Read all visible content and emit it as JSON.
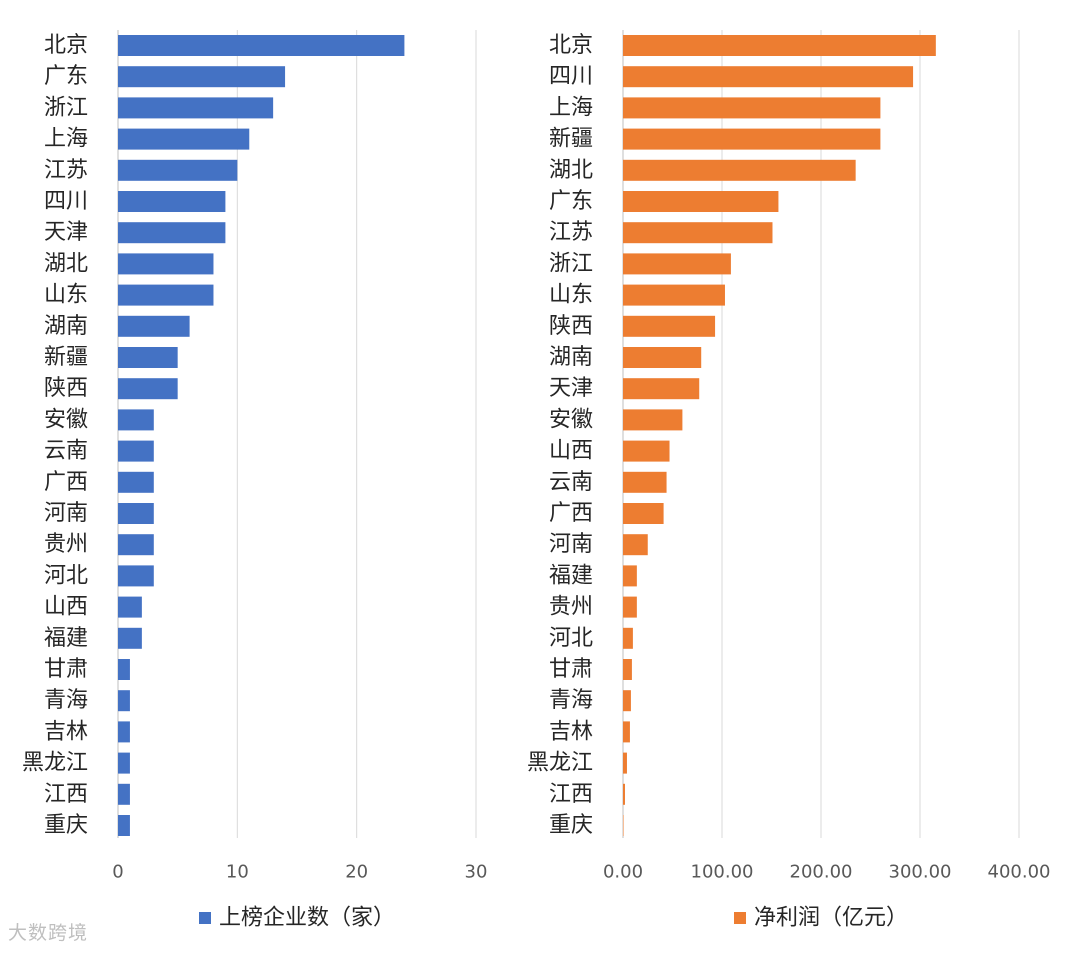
{
  "chart_data": [
    {
      "type": "bar",
      "orientation": "horizontal",
      "categories": [
        "北京",
        "广东",
        "浙江",
        "上海",
        "江苏",
        "四川",
        "天津",
        "湖北",
        "山东",
        "湖南",
        "新疆",
        "陕西",
        "安徽",
        "云南",
        "广西",
        "河南",
        "贵州",
        "河北",
        "山西",
        "福建",
        "甘肃",
        "青海",
        "吉林",
        "黑龙江",
        "江西",
        "重庆"
      ],
      "series": [
        {
          "name": "上榜企业数（家）",
          "color": "#4472C4",
          "values": [
            24,
            14,
            13,
            11,
            10,
            9,
            9,
            8,
            8,
            6,
            5,
            5,
            3,
            3,
            3,
            3,
            3,
            3,
            2,
            2,
            1,
            1,
            1,
            1,
            1,
            1
          ]
        }
      ],
      "xlim": [
        0,
        30
      ],
      "ticks": [
        0,
        10,
        20,
        30
      ],
      "tick_labels": [
        "0",
        "10",
        "20",
        "30"
      ],
      "grid": true,
      "legend": "bottom"
    },
    {
      "type": "bar",
      "orientation": "horizontal",
      "categories": [
        "北京",
        "四川",
        "上海",
        "新疆",
        "湖北",
        "广东",
        "江苏",
        "浙江",
        "山东",
        "陕西",
        "湖南",
        "天津",
        "安徽",
        "山西",
        "云南",
        "广西",
        "河南",
        "福建",
        "贵州",
        "河北",
        "甘肃",
        "青海",
        "吉林",
        "黑龙江",
        "江西",
        "重庆"
      ],
      "series": [
        {
          "name": "净利润（亿元）",
          "color": "#ED7D31",
          "values": [
            316,
            293,
            260,
            260,
            235,
            157,
            151,
            109,
            103,
            93,
            79,
            77,
            60,
            47,
            44,
            41,
            25,
            14,
            14,
            10,
            9,
            8,
            7,
            4,
            2,
            0.5
          ]
        }
      ],
      "xlim": [
        0,
        400
      ],
      "ticks": [
        0,
        100,
        200,
        300,
        400
      ],
      "tick_labels": [
        "0.00",
        "100.00",
        "200.00",
        "300.00",
        "400.00"
      ],
      "grid": true,
      "legend": "bottom"
    }
  ],
  "watermark": "大数跨境"
}
